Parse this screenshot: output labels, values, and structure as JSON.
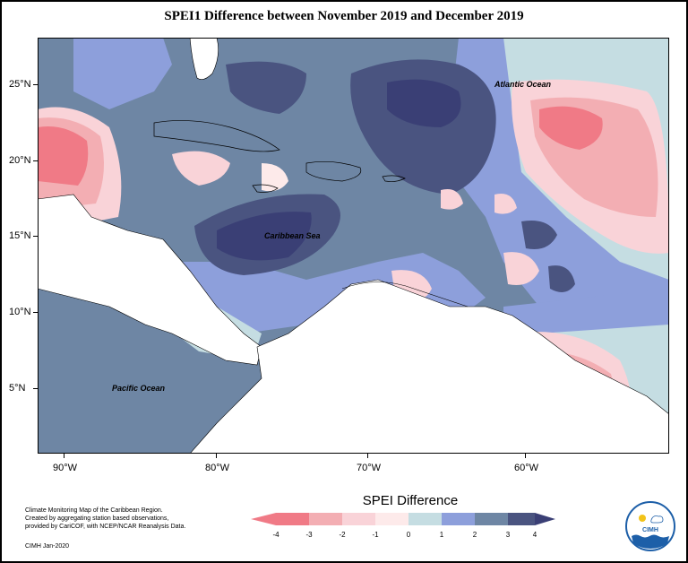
{
  "title": "SPEI1 Difference between November 2019 and December 2019",
  "map": {
    "lat_labels": [
      "25°N",
      "20°N",
      "15°N",
      "10°N",
      "5°N"
    ],
    "lon_labels": [
      "90°W",
      "80°W",
      "70°W",
      "60°W"
    ],
    "place_labels": {
      "atlantic": "Atlantic Ocean",
      "caribbean": "Caribbean Sea",
      "pacific": "Pacific Ocean"
    },
    "colors": {
      "below_-3": "#f07a86",
      "-3_-2": "#f3aeb3",
      "-2_-1": "#f9d3d8",
      "-1_0": "#fdeaea",
      "0_1": "#c5dde2",
      "1_2": "#8d9fdb",
      "2_3": "#6e86a4",
      "above_3": "#4a5480",
      "land": "#ffffff"
    }
  },
  "legend": {
    "title": "SPEI Difference",
    "ticks": [
      "-4",
      "-3",
      "-2",
      "-1",
      "0",
      "1",
      "2",
      "3",
      "4"
    ]
  },
  "credits": {
    "line1": "Climate Monitoring Map of the Caribbean Region.",
    "line2": "Created by aggregating station based observations,",
    "line3": "provided by CariCOF, with NCEP/NCAR Reanalysis Data.",
    "date": "CIMH Jan-2020"
  },
  "logo": {
    "text": "CIMH"
  }
}
